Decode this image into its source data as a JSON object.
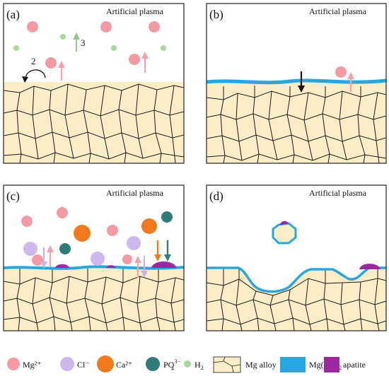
{
  "colors": {
    "alloy": "#fbedc6",
    "grain_line": "#1a1a1a",
    "hydroxide": "#27a7df",
    "apatite": "#9b27a2",
    "mg_ion": "#f39aa2",
    "cl_ion": "#cdb8ee",
    "ca_ion": "#f07a1b",
    "po4_ion": "#2e7c78",
    "h2": "#a6d79c",
    "arrow_pink": "#f4a1a9",
    "arrow_green": "#93c98a",
    "arrow_orange": "#f07a1b",
    "arrow_teal": "#2e7c78",
    "arrow_violet": "#c9b2ea"
  },
  "panels": [
    {
      "label": "(a)",
      "title": "Artificial plasma"
    },
    {
      "label": "(b)",
      "title": "Artificial plasma"
    },
    {
      "label": "(c)",
      "title": "Artificial plasma"
    },
    {
      "label": "(d)",
      "title": "Artificial plasma"
    }
  ],
  "step_labels": [
    "2",
    "3"
  ],
  "legend": [
    {
      "key": "mg",
      "text": "Mg²⁺"
    },
    {
      "key": "cl",
      "text": "Cl⁻"
    },
    {
      "key": "ca",
      "text": "Ca²⁺"
    },
    {
      "key": "po4",
      "text": "PO",
      "sub": "4",
      "sup": "3−"
    },
    {
      "key": "h2",
      "text": "H",
      "sub": "2"
    },
    {
      "key": "alloy",
      "text": "Mg alloy"
    },
    {
      "key": "mgoh2",
      "text": "Mg(OH)",
      "sub": "2"
    },
    {
      "key": "apatite",
      "text": "apatite"
    }
  ]
}
